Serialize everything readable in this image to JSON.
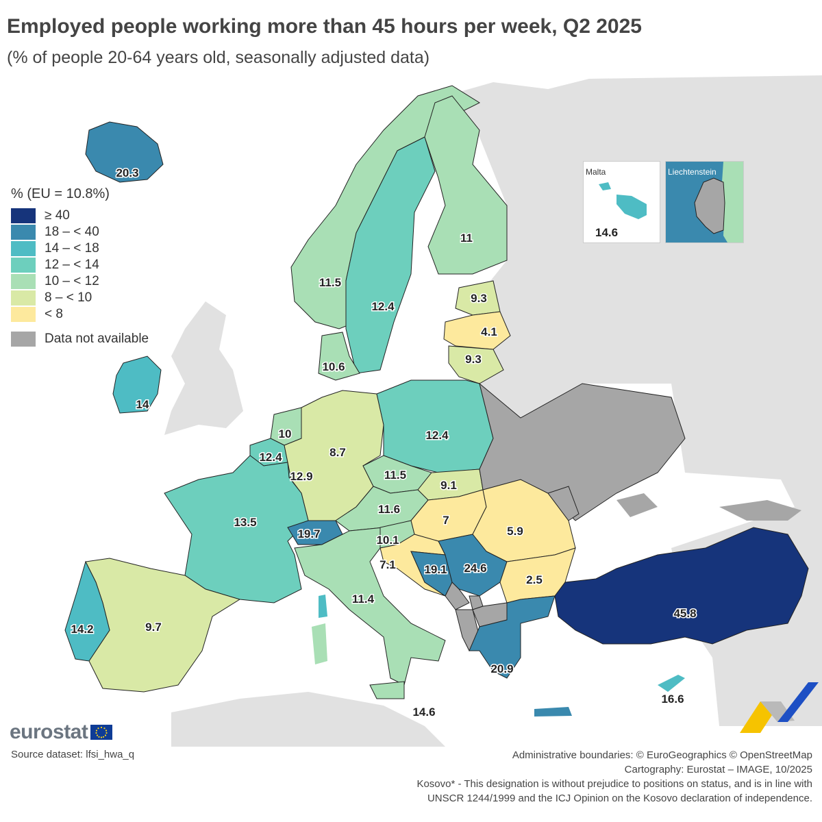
{
  "title": "Employed people working more than 45 hours per week, Q2 2025",
  "subtitle": "(% of people 20-64 years old, seasonally adjusted data)",
  "legend": {
    "title": "% (EU = 10.8%)",
    "classes": [
      {
        "label": "≥ 40",
        "color": "#16347b"
      },
      {
        "label": "18 – < 40",
        "color": "#3a89ae"
      },
      {
        "label": "14 – < 18",
        "color": "#4ebcc4"
      },
      {
        "label": "12 – < 14",
        "color": "#6dcfbd"
      },
      {
        "label": "10 – < 12",
        "color": "#a9dfb5"
      },
      {
        "label": "8 – < 10",
        "color": "#d9e9a6"
      },
      {
        "label": "< 8",
        "color": "#fde99d"
      }
    ],
    "na": {
      "label": "Data not available",
      "color": "#a6a6a6"
    }
  },
  "colors": {
    "sea": "#ffffff",
    "non_covered": "#e1e1e1",
    "border": "#222222"
  },
  "chart_data": {
    "type": "choropleth",
    "unit": "%",
    "eu_value": 10.8,
    "countries": [
      {
        "name": "Iceland",
        "value": 20.3
      },
      {
        "name": "Norway",
        "value": 11.5
      },
      {
        "name": "Sweden",
        "value": 12.4
      },
      {
        "name": "Finland",
        "value": 11
      },
      {
        "name": "Estonia",
        "value": 9.3
      },
      {
        "name": "Latvia",
        "value": 4.1
      },
      {
        "name": "Lithuania",
        "value": 9.3
      },
      {
        "name": "Denmark",
        "value": 10.6
      },
      {
        "name": "Ireland",
        "value": 14
      },
      {
        "name": "Netherlands",
        "value": 10
      },
      {
        "name": "Belgium",
        "value": 12.4
      },
      {
        "name": "Luxembourg",
        "value": 12.9
      },
      {
        "name": "Germany",
        "value": 8.7
      },
      {
        "name": "Poland",
        "value": 12.4
      },
      {
        "name": "Czechia",
        "value": 11.5
      },
      {
        "name": "Slovakia",
        "value": 9.1
      },
      {
        "name": "Austria",
        "value": 11.6
      },
      {
        "name": "Hungary",
        "value": 7
      },
      {
        "name": "Romania",
        "value": 5.9
      },
      {
        "name": "France",
        "value": 13.5
      },
      {
        "name": "Switzerland",
        "value": 19.7
      },
      {
        "name": "Slovenia",
        "value": 10.1
      },
      {
        "name": "Croatia",
        "value": 7.1
      },
      {
        "name": "Bosnia and Herzegovina",
        "value": 19.1
      },
      {
        "name": "Serbia",
        "value": 24.6
      },
      {
        "name": "Bulgaria",
        "value": 2.5
      },
      {
        "name": "Italy",
        "value": 11.4
      },
      {
        "name": "Portugal",
        "value": 14.2
      },
      {
        "name": "Spain",
        "value": 9.7
      },
      {
        "name": "Greece",
        "value": 20.9
      },
      {
        "name": "Türkiye",
        "value": 45.8
      },
      {
        "name": "Cyprus",
        "value": 16.6
      },
      {
        "name": "Malta",
        "value": 14.6
      },
      {
        "name": "Liechtenstein",
        "value": null
      },
      {
        "name": "Ukraine",
        "value": null
      },
      {
        "name": "Moldova",
        "value": null
      },
      {
        "name": "Montenegro",
        "value": null
      },
      {
        "name": "Albania",
        "value": null
      },
      {
        "name": "North Macedonia",
        "value": null
      },
      {
        "name": "Kosovo*",
        "value": null
      }
    ]
  },
  "insets": {
    "malta": {
      "label": "Malta",
      "value": "14.6"
    },
    "liechtenstein": {
      "label": "Liechtenstein"
    }
  },
  "source": "Source dataset: lfsi_hwa_q",
  "logo": "eurostat",
  "credits": [
    "Administrative boundaries: © EuroGeographics © OpenStreetMap",
    "Cartography: Eurostat – IMAGE, 10/2025",
    "Kosovo* - This designation is without prejudice to positions on status, and is in line with",
    "UNSCR 1244/1999 and the ICJ Opinion on the Kosovo declaration of independence."
  ]
}
